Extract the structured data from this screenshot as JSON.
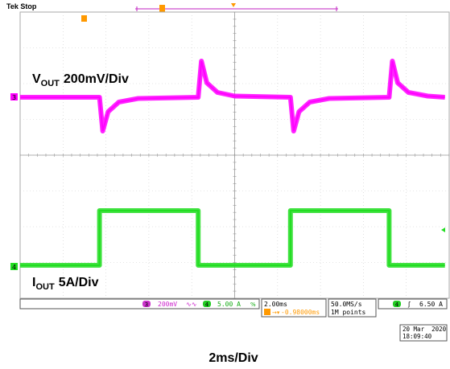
{
  "scope_status": "Tek Stop",
  "chart_data": {
    "type": "line",
    "title": "",
    "xlabel": "2ms/Div",
    "time_per_div_ms": 2,
    "x_divisions": 10,
    "y_divisions": 8,
    "grid": true,
    "series": [
      {
        "name": "V_OUT",
        "label_main": "V",
        "label_sub": "OUT",
        "label_scale": "200mV/Div",
        "channel": "3",
        "color": "#ff00ff",
        "points_ms": [
          [
            0.0,
            0.0
          ],
          [
            3.7,
            0.0
          ],
          [
            3.85,
            -0.28
          ],
          [
            4.1,
            -0.12
          ],
          [
            4.6,
            -0.04
          ],
          [
            5.5,
            -0.01
          ],
          [
            8.3,
            0.0
          ],
          [
            8.45,
            0.3
          ],
          [
            8.7,
            0.12
          ],
          [
            9.2,
            0.04
          ],
          [
            10.0,
            0.01
          ],
          [
            12.6,
            0.0
          ],
          [
            12.75,
            -0.28
          ],
          [
            13.0,
            -0.12
          ],
          [
            13.5,
            -0.04
          ],
          [
            14.4,
            -0.01
          ],
          [
            17.2,
            0.0
          ],
          [
            17.35,
            0.3
          ],
          [
            17.6,
            0.12
          ],
          [
            18.1,
            0.04
          ],
          [
            19.0,
            0.01
          ],
          [
            19.8,
            0.0
          ]
        ]
      },
      {
        "name": "I_OUT",
        "label_main": "I",
        "label_sub": "OUT",
        "label_scale": "5A/Div",
        "channel": "4",
        "color": "#22dd22",
        "points_ms": [
          [
            0.0,
            0.0
          ],
          [
            3.7,
            0.0
          ],
          [
            3.7,
            10.0
          ],
          [
            8.3,
            10.0
          ],
          [
            8.3,
            0.0
          ],
          [
            12.6,
            0.0
          ],
          [
            12.6,
            10.0
          ],
          [
            17.2,
            10.0
          ],
          [
            17.2,
            0.0
          ],
          [
            19.8,
            0.0
          ]
        ]
      }
    ],
    "readouts": {
      "ch3_scale": "200mV",
      "ch3_bw": "∿∿",
      "ch4_scale": "5.00 A",
      "ch4_bw": "%",
      "timebase": "2.00ms",
      "trigger_pos": "-0.98000ms",
      "sample_rate": "50.0MS/s",
      "record_length": "1M points",
      "trig_channel": "4",
      "trig_slope": "ʃ",
      "trig_level": "6.50 A",
      "date": "20 Mar  2020",
      "time": "18:09:40"
    }
  }
}
